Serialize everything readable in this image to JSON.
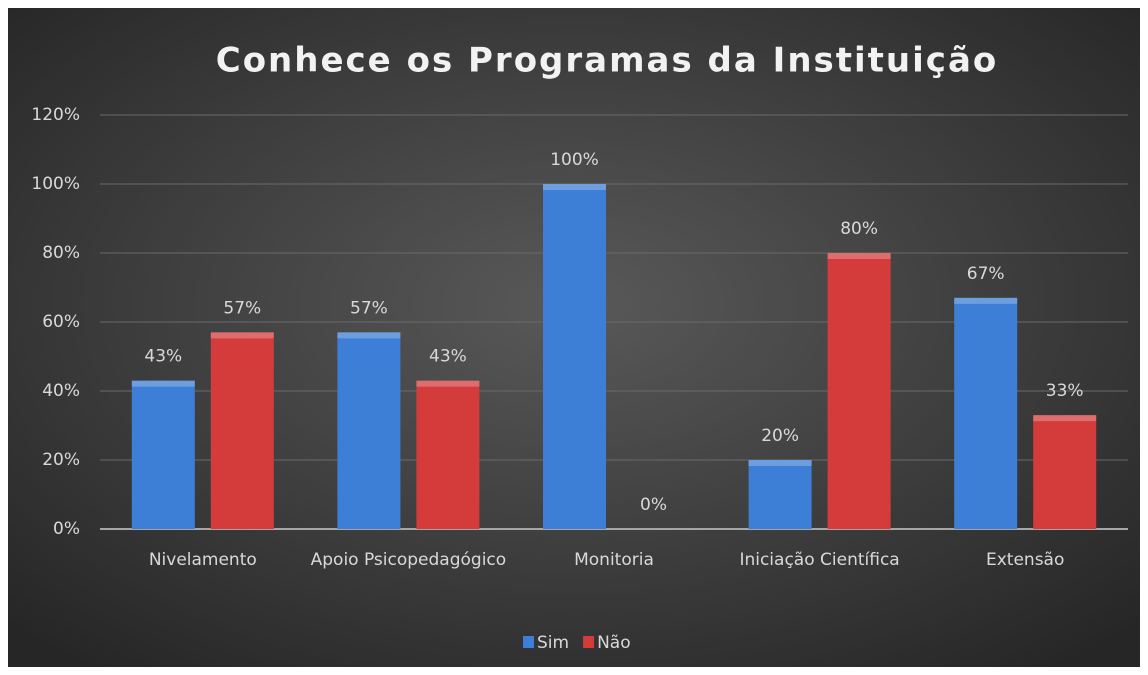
{
  "chart_data": {
    "type": "bar",
    "title": "Conhece os Programas da Instituição",
    "categories": [
      "Nivelamento",
      "Apoio Psicopedagógico",
      "Monitoria",
      "Iniciação Científica",
      "Extensão"
    ],
    "series": [
      {
        "name": "Sim",
        "color": "#3d7fd6",
        "values": [
          43,
          57,
          100,
          20,
          67
        ],
        "value_labels": [
          "43%",
          "57%",
          "100%",
          "20%",
          "67%"
        ]
      },
      {
        "name": "Não",
        "color": "#d43c3c",
        "values": [
          57,
          43,
          0,
          80,
          33
        ],
        "value_labels": [
          "57%",
          "43%",
          "0%",
          "80%",
          "33%"
        ]
      }
    ],
    "ylim": [
      0,
      120
    ],
    "yticks": [
      {
        "value": 0,
        "label": "0%"
      },
      {
        "value": 20,
        "label": "20%"
      },
      {
        "value": 40,
        "label": "40%"
      },
      {
        "value": 60,
        "label": "60%"
      },
      {
        "value": 80,
        "label": "80%"
      },
      {
        "value": 100,
        "label": "100%"
      },
      {
        "value": 120,
        "label": "120%"
      }
    ],
    "grid": true,
    "legend": "bottom"
  }
}
